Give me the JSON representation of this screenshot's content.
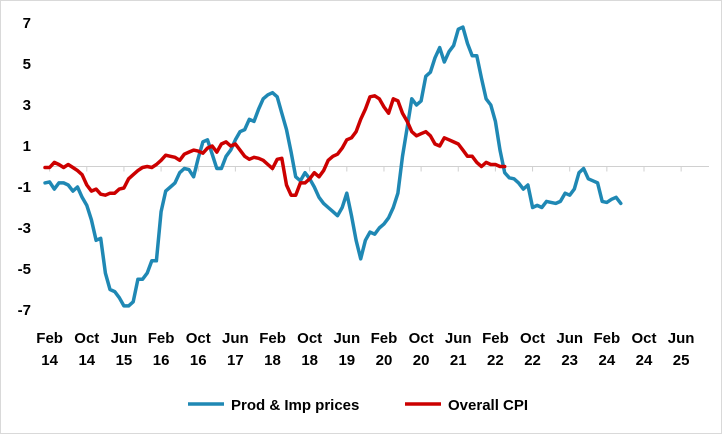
{
  "chart_data": {
    "type": "line",
    "title": "",
    "xlabel": "",
    "ylabel": "",
    "ylim": [
      -7,
      7
    ],
    "y_ticks": [
      7,
      5,
      3,
      1,
      -1,
      -3,
      -5,
      -7
    ],
    "x_index_range": [
      0,
      143
    ],
    "x_ticks": [
      {
        "month": "Feb",
        "year": "14",
        "index": 1
      },
      {
        "month": "Oct",
        "year": "14",
        "index": 9
      },
      {
        "month": "Jun",
        "year": "15",
        "index": 17
      },
      {
        "month": "Feb",
        "year": "16",
        "index": 25
      },
      {
        "month": "Oct",
        "year": "16",
        "index": 33
      },
      {
        "month": "Jun",
        "year": "17",
        "index": 41
      },
      {
        "month": "Feb",
        "year": "18",
        "index": 49
      },
      {
        "month": "Oct",
        "year": "18",
        "index": 57
      },
      {
        "month": "Jun",
        "year": "19",
        "index": 65
      },
      {
        "month": "Feb",
        "year": "20",
        "index": 73
      },
      {
        "month": "Oct",
        "year": "20",
        "index": 81
      },
      {
        "month": "Jun",
        "year": "21",
        "index": 89
      },
      {
        "month": "Feb",
        "year": "22",
        "index": 97
      },
      {
        "month": "Oct",
        "year": "22",
        "index": 105
      },
      {
        "month": "Jun",
        "year": "23",
        "index": 113
      },
      {
        "month": "Feb",
        "year": "24",
        "index": 121
      },
      {
        "month": "Oct",
        "year": "24",
        "index": 129
      },
      {
        "month": "Jun",
        "year": "25",
        "index": 137
      }
    ],
    "legend_position": "bottom",
    "series": [
      {
        "name": "Prod & Imp prices",
        "color": "#1f88b4",
        "points": [
          [
            0,
            -0.8
          ],
          [
            1,
            -0.75
          ],
          [
            2,
            -1.1
          ],
          [
            3,
            -0.8
          ],
          [
            4,
            -0.8
          ],
          [
            5,
            -0.9
          ],
          [
            6,
            -1.2
          ],
          [
            7,
            -1.0
          ],
          [
            8,
            -1.5
          ],
          [
            9,
            -1.9
          ],
          [
            10,
            -2.6
          ],
          [
            11,
            -3.6
          ],
          [
            12,
            -3.5
          ],
          [
            13,
            -5.2
          ],
          [
            14,
            -6.0
          ],
          [
            15,
            -6.1
          ],
          [
            16,
            -6.4
          ],
          [
            17,
            -6.8
          ],
          [
            18,
            -6.8
          ],
          [
            19,
            -6.6
          ],
          [
            20,
            -5.5
          ],
          [
            21,
            -5.5
          ],
          [
            22,
            -5.2
          ],
          [
            23,
            -4.6
          ],
          [
            24,
            -4.6
          ],
          [
            25,
            -2.2
          ],
          [
            26,
            -1.2
          ],
          [
            27,
            -1.0
          ],
          [
            28,
            -0.8
          ],
          [
            29,
            -0.3
          ],
          [
            30,
            -0.1
          ],
          [
            31,
            -0.15
          ],
          [
            32,
            -0.5
          ],
          [
            33,
            0.4
          ],
          [
            34,
            1.2
          ],
          [
            35,
            1.3
          ],
          [
            36,
            0.6
          ],
          [
            37,
            -0.1
          ],
          [
            38,
            -0.1
          ],
          [
            39,
            0.5
          ],
          [
            40,
            0.8
          ],
          [
            41,
            1.3
          ],
          [
            42,
            1.7
          ],
          [
            43,
            1.8
          ],
          [
            44,
            2.3
          ],
          [
            45,
            2.2
          ],
          [
            46,
            2.8
          ],
          [
            47,
            3.3
          ],
          [
            48,
            3.5
          ],
          [
            49,
            3.6
          ],
          [
            50,
            3.4
          ],
          [
            51,
            2.6
          ],
          [
            52,
            1.8
          ],
          [
            53,
            0.7
          ],
          [
            54,
            -0.5
          ],
          [
            55,
            -0.7
          ],
          [
            56,
            -0.3
          ],
          [
            57,
            -0.6
          ],
          [
            58,
            -1.0
          ],
          [
            59,
            -1.5
          ],
          [
            60,
            -1.8
          ],
          [
            61,
            -2.0
          ],
          [
            62,
            -2.2
          ],
          [
            63,
            -2.4
          ],
          [
            64,
            -2.0
          ],
          [
            65,
            -1.3
          ],
          [
            66,
            -2.4
          ],
          [
            67,
            -3.6
          ],
          [
            68,
            -4.5
          ],
          [
            69,
            -3.6
          ],
          [
            70,
            -3.2
          ],
          [
            71,
            -3.3
          ],
          [
            72,
            -3.0
          ],
          [
            73,
            -2.8
          ],
          [
            74,
            -2.5
          ],
          [
            75,
            -2.0
          ],
          [
            76,
            -1.3
          ],
          [
            77,
            0.5
          ],
          [
            78,
            1.9
          ],
          [
            79,
            3.3
          ],
          [
            80,
            3.0
          ],
          [
            81,
            3.2
          ],
          [
            82,
            4.4
          ],
          [
            83,
            4.6
          ],
          [
            84,
            5.3
          ],
          [
            85,
            5.8
          ],
          [
            86,
            5.1
          ],
          [
            87,
            5.6
          ],
          [
            88,
            5.9
          ],
          [
            89,
            6.7
          ],
          [
            90,
            6.8
          ],
          [
            91,
            6.0
          ],
          [
            92,
            5.4
          ],
          [
            93,
            5.4
          ],
          [
            94,
            4.3
          ],
          [
            95,
            3.3
          ],
          [
            96,
            3.0
          ],
          [
            97,
            2.2
          ],
          [
            98,
            0.8
          ],
          [
            99,
            -0.3
          ],
          [
            100,
            -0.55
          ],
          [
            101,
            -0.6
          ],
          [
            102,
            -0.8
          ],
          [
            103,
            -1.1
          ],
          [
            104,
            -0.9
          ],
          [
            105,
            -2.0
          ],
          [
            106,
            -1.9
          ],
          [
            107,
            -2.0
          ],
          [
            108,
            -1.7
          ],
          [
            109,
            -1.75
          ],
          [
            110,
            -1.8
          ],
          [
            111,
            -1.7
          ],
          [
            112,
            -1.3
          ],
          [
            113,
            -1.4
          ],
          [
            114,
            -1.1
          ],
          [
            115,
            -0.3
          ],
          [
            116,
            -0.1
          ],
          [
            117,
            -0.6
          ],
          [
            118,
            -0.7
          ],
          [
            119,
            -0.8
          ],
          [
            120,
            -1.7
          ],
          [
            121,
            -1.75
          ],
          [
            122,
            -1.6
          ],
          [
            123,
            -1.5
          ],
          [
            124,
            -1.8
          ]
        ]
      },
      {
        "name": "Overall CPI",
        "color": "#cc0000",
        "points": [
          [
            0,
            -0.05
          ],
          [
            1,
            -0.05
          ],
          [
            2,
            0.2
          ],
          [
            3,
            0.1
          ],
          [
            4,
            -0.05
          ],
          [
            5,
            0.1
          ],
          [
            6,
            -0.05
          ],
          [
            7,
            -0.2
          ],
          [
            8,
            -0.4
          ],
          [
            9,
            -0.9
          ],
          [
            10,
            -1.2
          ],
          [
            11,
            -1.1
          ],
          [
            12,
            -1.35
          ],
          [
            13,
            -1.4
          ],
          [
            14,
            -1.3
          ],
          [
            15,
            -1.3
          ],
          [
            16,
            -1.1
          ],
          [
            17,
            -1.05
          ],
          [
            18,
            -0.6
          ],
          [
            19,
            -0.4
          ],
          [
            20,
            -0.2
          ],
          [
            21,
            -0.05
          ],
          [
            22,
            0.0
          ],
          [
            23,
            -0.05
          ],
          [
            24,
            0.1
          ],
          [
            25,
            0.3
          ],
          [
            26,
            0.55
          ],
          [
            27,
            0.5
          ],
          [
            28,
            0.45
          ],
          [
            29,
            0.3
          ],
          [
            30,
            0.6
          ],
          [
            31,
            0.7
          ],
          [
            32,
            0.8
          ],
          [
            33,
            0.75
          ],
          [
            34,
            0.65
          ],
          [
            35,
            0.9
          ],
          [
            36,
            1.0
          ],
          [
            37,
            0.7
          ],
          [
            38,
            1.1
          ],
          [
            39,
            1.2
          ],
          [
            40,
            1.0
          ],
          [
            41,
            1.1
          ],
          [
            42,
            0.8
          ],
          [
            43,
            0.5
          ],
          [
            44,
            0.35
          ],
          [
            45,
            0.45
          ],
          [
            46,
            0.4
          ],
          [
            47,
            0.3
          ],
          [
            48,
            0.1
          ],
          [
            49,
            -0.1
          ],
          [
            50,
            0.35
          ],
          [
            51,
            0.4
          ],
          [
            52,
            -0.9
          ],
          [
            53,
            -1.4
          ],
          [
            54,
            -1.4
          ],
          [
            55,
            -0.8
          ],
          [
            56,
            -0.8
          ],
          [
            57,
            -0.6
          ],
          [
            58,
            -0.3
          ],
          [
            59,
            -0.5
          ],
          [
            60,
            -0.2
          ],
          [
            61,
            0.3
          ],
          [
            62,
            0.5
          ],
          [
            63,
            0.6
          ],
          [
            64,
            0.9
          ],
          [
            65,
            1.3
          ],
          [
            66,
            1.4
          ],
          [
            67,
            1.7
          ],
          [
            68,
            2.3
          ],
          [
            69,
            2.8
          ],
          [
            70,
            3.4
          ],
          [
            71,
            3.45
          ],
          [
            72,
            3.3
          ],
          [
            73,
            2.9
          ],
          [
            74,
            2.6
          ],
          [
            75,
            3.3
          ],
          [
            76,
            3.2
          ],
          [
            77,
            2.6
          ],
          [
            78,
            2.2
          ],
          [
            79,
            1.7
          ],
          [
            80,
            1.5
          ],
          [
            81,
            1.6
          ],
          [
            82,
            1.7
          ],
          [
            83,
            1.5
          ],
          [
            84,
            1.1
          ],
          [
            85,
            1.0
          ],
          [
            86,
            1.4
          ],
          [
            87,
            1.3
          ],
          [
            88,
            1.2
          ],
          [
            89,
            1.1
          ],
          [
            90,
            0.8
          ],
          [
            91,
            0.5
          ],
          [
            92,
            0.5
          ],
          [
            93,
            0.2
          ],
          [
            94,
            0.0
          ],
          [
            95,
            0.2
          ],
          [
            96,
            0.1
          ],
          [
            97,
            0.1
          ],
          [
            98,
            0.0
          ],
          [
            99,
            0.0
          ]
        ]
      }
    ]
  }
}
